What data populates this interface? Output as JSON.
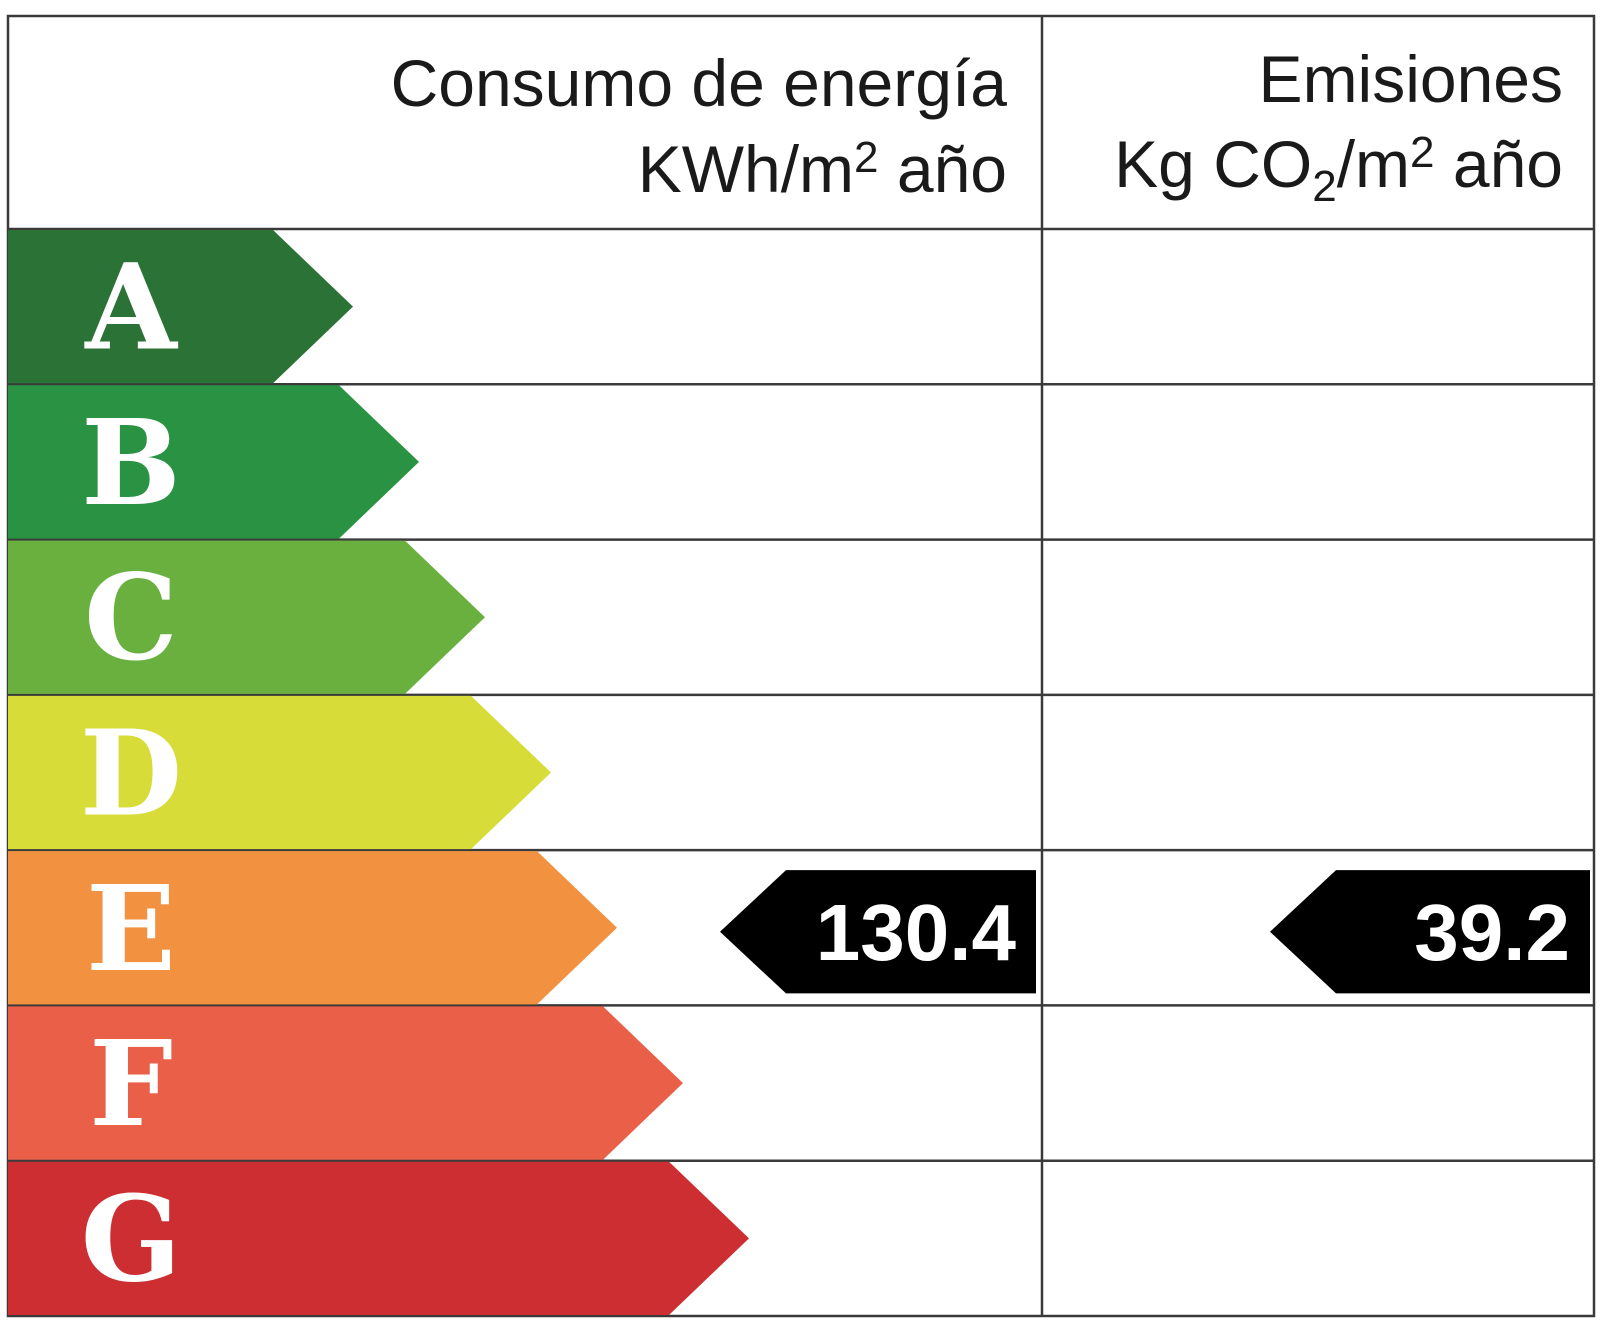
{
  "header": {
    "consumo_title": "Consumo de energía",
    "consumo_unit": {
      "prefix": "KWh/m",
      "sup": "2",
      "suffix": " año"
    },
    "emisiones_title": "Emisiones",
    "emisiones_unit": {
      "prefix": "Kg CO",
      "sub": "2",
      "mid": "/m",
      "sup": "2",
      "suffix": " año"
    }
  },
  "chart_data": {
    "type": "bar",
    "categories": [
      "A",
      "B",
      "C",
      "D",
      "E",
      "F",
      "G"
    ],
    "colors": [
      "#2b7236",
      "#2a9343",
      "#69b03f",
      "#d8dc38",
      "#f29240",
      "#e95f47",
      "#cc2e31"
    ],
    "consumo_value": "130.4",
    "consumo_class": "E",
    "emisiones_value": "39.2",
    "emisiones_class": "E"
  }
}
